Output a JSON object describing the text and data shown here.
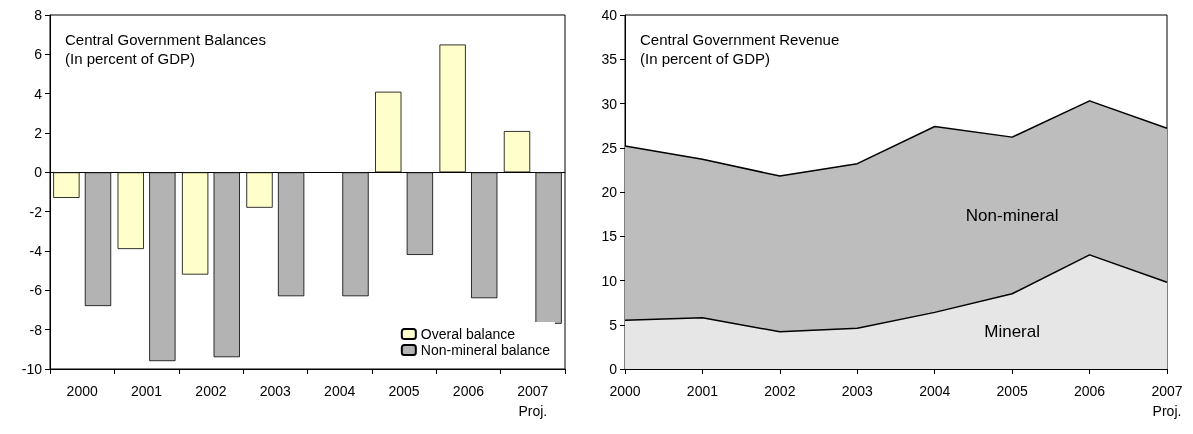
{
  "chart_data": [
    {
      "type": "bar",
      "title": "Central Government Balances",
      "subtitle": "(In percent of GDP)",
      "categories": [
        "2000",
        "2001",
        "2002",
        "2003",
        "2004",
        "2005",
        "2006",
        "2007\nProj."
      ],
      "series": [
        {
          "name": "Overal balance",
          "color": "#ffffcc",
          "values": [
            -1.3,
            -3.9,
            -5.2,
            -1.8,
            null,
            4.1,
            6.5,
            2.1
          ]
        },
        {
          "name": "Non-mineral balance",
          "color": "#b3b3b3",
          "values": [
            -6.8,
            -9.6,
            -9.4,
            -6.3,
            -6.3,
            -4.2,
            -6.4,
            -7.7
          ]
        }
      ],
      "ylim": [
        -10,
        8
      ],
      "yticks": [
        -10,
        -8,
        -6,
        -4,
        -2,
        0,
        2,
        4,
        6,
        8
      ],
      "legend": "bottom right"
    },
    {
      "type": "area",
      "stacked": true,
      "title": "Central Government Revenue",
      "subtitle": "(In percent of GDP)",
      "categories": [
        "2000",
        "2001",
        "2002",
        "2003",
        "2004",
        "2005",
        "2006",
        "2007\nProj."
      ],
      "series": [
        {
          "name": "Mineral",
          "color": "#e6e6e6",
          "values": [
            5.5,
            5.8,
            4.2,
            4.6,
            6.4,
            8.5,
            12.9,
            9.8
          ]
        },
        {
          "name": "Non-mineral",
          "color": "#bdbdbd",
          "values": [
            19.7,
            17.9,
            17.6,
            18.6,
            21.0,
            17.7,
            17.4,
            17.4
          ]
        }
      ],
      "ylim": [
        0,
        40
      ],
      "yticks": [
        0,
        5,
        10,
        15,
        20,
        25,
        30,
        35,
        40
      ],
      "grid": false,
      "legend": false
    }
  ]
}
